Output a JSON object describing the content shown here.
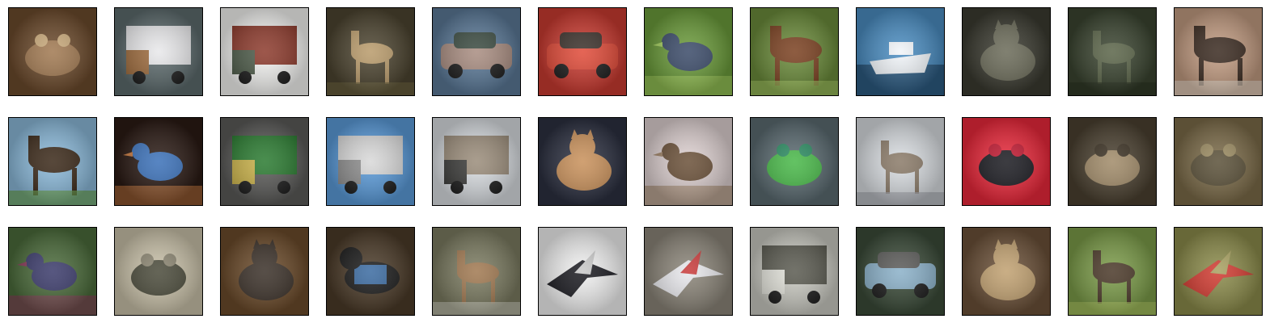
{
  "figure": {
    "rows": 3,
    "cols": 12,
    "tiles": [
      {
        "subject": "frog",
        "bg": "#6b4a2c",
        "accent": "#a07850",
        "sub": "#c9a97a"
      },
      {
        "subject": "truck",
        "bg": "#5c6a6c",
        "accent": "#e8e8ea",
        "sub": "#9c6a3c"
      },
      {
        "subject": "truck",
        "bg": "#f2f2f0",
        "accent": "#8c3a2c",
        "sub": "#4c5a48"
      },
      {
        "subject": "deer",
        "bg": "#4c4430",
        "accent": "#b89a6a",
        "sub": "#6c6240"
      },
      {
        "subject": "automobile",
        "bg": "#5a7896",
        "accent": "#a88c80",
        "sub": "#3a4a40"
      },
      {
        "subject": "automobile",
        "bg": "#c83a30",
        "accent": "#e04a38",
        "sub": "#3a302a"
      },
      {
        "subject": "bird",
        "bg": "#6a9a3a",
        "accent": "#3a4a68",
        "sub": "#a6d060"
      },
      {
        "subject": "horse",
        "bg": "#6a8a3a",
        "accent": "#7a4020",
        "sub": "#a0c060"
      },
      {
        "subject": "ship",
        "bg": "#4a8cc0",
        "accent": "#f0f4f8",
        "sub": "#2c5a80"
      },
      {
        "subject": "cat",
        "bg": "#3a3a30",
        "accent": "#6a6a58",
        "sub": "#2a2a22"
      },
      {
        "subject": "deer",
        "bg": "#3a4430",
        "accent": "#5a6448",
        "sub": "#2c3424"
      },
      {
        "subject": "horse",
        "bg": "#c09a80",
        "accent": "#3a2a20",
        "sub": "#e0d0c0"
      },
      {
        "subject": "horse",
        "bg": "#8ab8d8",
        "accent": "#3a2818",
        "sub": "#6aa050"
      },
      {
        "subject": "bird",
        "bg": "#2a1a14",
        "accent": "#3a70b8",
        "sub": "#c87a40"
      },
      {
        "subject": "truck",
        "bg": "#5a5a58",
        "accent": "#2a7a30",
        "sub": "#c8b048"
      },
      {
        "subject": "truck",
        "bg": "#5a9ad8",
        "accent": "#d8d8d8",
        "sub": "#8c8c8c"
      },
      {
        "subject": "truck",
        "bg": "#d8dce0",
        "accent": "#9a8c7a",
        "sub": "#3a3a38"
      },
      {
        "subject": "cat",
        "bg": "#2c3040",
        "accent": "#c8905a",
        "sub": "#3a3a48"
      },
      {
        "subject": "bird",
        "bg": "#ddd0d0",
        "accent": "#6a5038",
        "sub": "#a08468"
      },
      {
        "subject": "frog",
        "bg": "#5a6a70",
        "accent": "#48b848",
        "sub": "#2a8a60"
      },
      {
        "subject": "deer",
        "bg": "#d8dce0",
        "accent": "#8a7a68",
        "sub": "#a8aab0"
      },
      {
        "subject": "frog",
        "bg": "#e8283a",
        "accent": "#1a1a20",
        "sub": "#c01830"
      },
      {
        "subject": "frog",
        "bg": "#4a4030",
        "accent": "#a08a68",
        "sub": "#3a3022"
      },
      {
        "subject": "frog",
        "bg": "#7a6a48",
        "accent": "#5a5038",
        "sub": "#9a8a60"
      },
      {
        "subject": "bird",
        "bg": "#4a6a3a",
        "accent": "#3a3a6a",
        "sub": "#8a3a5a"
      },
      {
        "subject": "frog",
        "bg": "#c8c0a8",
        "accent": "#4a4a3a",
        "sub": "#8a8470"
      },
      {
        "subject": "cat",
        "bg": "#6a4a2a",
        "accent": "#3a3028",
        "sub": "#a07a50"
      },
      {
        "subject": "dog",
        "bg": "#4a3a28",
        "accent": "#3a6aa0",
        "sub": "#1a1a1a"
      },
      {
        "subject": "deer",
        "bg": "#7a7a60",
        "accent": "#a07850",
        "sub": "#c0c0b0"
      },
      {
        "subject": "airplane",
        "bg": "#f0f0f0",
        "accent": "#1a1a20",
        "sub": "#c8c8c8"
      },
      {
        "subject": "airplane",
        "bg": "#8a8478",
        "accent": "#e8e8ec",
        "sub": "#c83a3a"
      },
      {
        "subject": "truck",
        "bg": "#c8c8c0",
        "accent": "#5a5a50",
        "sub": "#e0e0d8"
      },
      {
        "subject": "automobile",
        "bg": "#3a4a38",
        "accent": "#8ab0c8",
        "sub": "#5a5a58"
      },
      {
        "subject": "cat",
        "bg": "#6a5038",
        "accent": "#c0a070",
        "sub": "#4a3828"
      },
      {
        "subject": "deer",
        "bg": "#7a9a48",
        "accent": "#4a3828",
        "sub": "#a8c060"
      },
      {
        "subject": "airplane",
        "bg": "#8a8a4a",
        "accent": "#d03a30",
        "sub": "#a8a060"
      }
    ]
  }
}
